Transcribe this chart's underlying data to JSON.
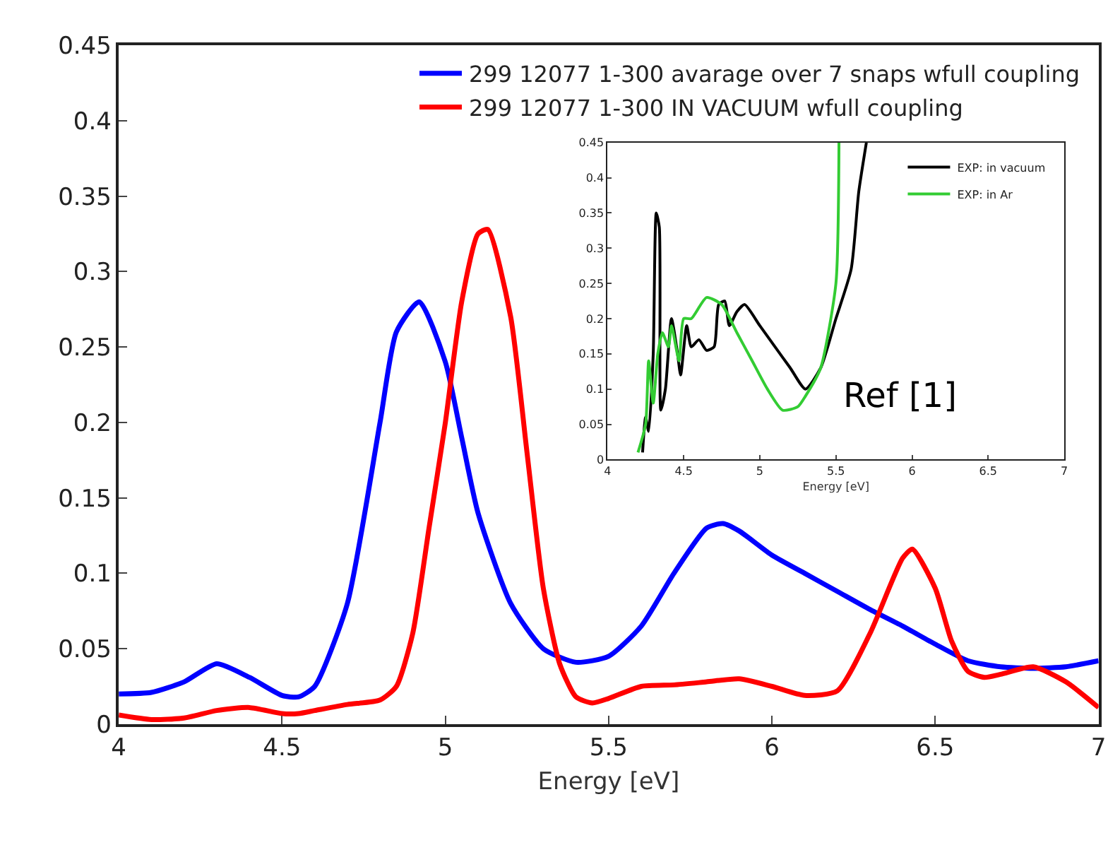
{
  "chart_data": [
    {
      "type": "line",
      "xlabel": "Energy [eV]",
      "xlim": [
        4,
        7
      ],
      "xticks": [
        4,
        4.5,
        5,
        5.5,
        6,
        6.5,
        7
      ],
      "ylim": [
        0,
        0.45
      ],
      "yticks": [
        0,
        0.05,
        0.1,
        0.15,
        0.2,
        0.25,
        0.3,
        0.35,
        0.4,
        0.45
      ],
      "legend": "top right",
      "marker": "none",
      "line_style": "solid",
      "series": [
        {
          "name": "299 12077 1-300 avarage over 7 snaps wfull coupling",
          "color": "#0000ff",
          "x": [
            4.0,
            4.1,
            4.2,
            4.3,
            4.4,
            4.5,
            4.55,
            4.6,
            4.7,
            4.8,
            4.85,
            4.92,
            5.0,
            5.05,
            5.1,
            5.2,
            5.3,
            5.4,
            5.5,
            5.6,
            5.7,
            5.8,
            5.85,
            5.9,
            6.0,
            6.1,
            6.2,
            6.3,
            6.4,
            6.5,
            6.6,
            6.7,
            6.8,
            6.9,
            7.0
          ],
          "values": [
            0.02,
            0.021,
            0.028,
            0.04,
            0.031,
            0.019,
            0.018,
            0.025,
            0.08,
            0.2,
            0.26,
            0.28,
            0.24,
            0.19,
            0.14,
            0.08,
            0.05,
            0.041,
            0.045,
            0.065,
            0.1,
            0.13,
            0.133,
            0.128,
            0.112,
            0.1,
            0.088,
            0.076,
            0.065,
            0.053,
            0.042,
            0.038,
            0.037,
            0.038,
            0.042
          ]
        },
        {
          "name": "299 12077 1-300 IN VACUUM wfull coupling",
          "color": "#ff0000",
          "x": [
            4.0,
            4.1,
            4.2,
            4.3,
            4.4,
            4.5,
            4.55,
            4.6,
            4.7,
            4.8,
            4.85,
            4.9,
            4.95,
            5.0,
            5.05,
            5.1,
            5.13,
            5.2,
            5.25,
            5.3,
            5.35,
            5.4,
            5.45,
            5.5,
            5.6,
            5.7,
            5.8,
            5.9,
            6.0,
            6.1,
            6.2,
            6.3,
            6.4,
            6.43,
            6.5,
            6.55,
            6.6,
            6.65,
            6.7,
            6.8,
            6.9,
            7.0
          ],
          "values": [
            0.006,
            0.003,
            0.004,
            0.009,
            0.011,
            0.007,
            0.007,
            0.009,
            0.013,
            0.016,
            0.025,
            0.06,
            0.13,
            0.2,
            0.28,
            0.325,
            0.328,
            0.27,
            0.18,
            0.09,
            0.04,
            0.018,
            0.014,
            0.017,
            0.025,
            0.026,
            0.028,
            0.03,
            0.025,
            0.019,
            0.022,
            0.06,
            0.11,
            0.116,
            0.09,
            0.055,
            0.035,
            0.031,
            0.033,
            0.038,
            0.028,
            0.011
          ]
        }
      ]
    },
    {
      "type": "line",
      "xlabel": "Energy [eV]",
      "xlim": [
        4,
        7
      ],
      "xticks": [
        4,
        4.5,
        5,
        5.5,
        6,
        6.5,
        7
      ],
      "ylim": [
        0,
        0.45
      ],
      "yticks": [
        0,
        0.05,
        0.1,
        0.15,
        0.2,
        0.25,
        0.3,
        0.35,
        0.4,
        0.45
      ],
      "legend": "top right",
      "marker": "none",
      "line_style": "solid",
      "annotations": [
        "Ref [1]"
      ],
      "series": [
        {
          "name": "EXP: in vacuum",
          "color": "#000000",
          "x": [
            4.23,
            4.25,
            4.27,
            4.3,
            4.32,
            4.34,
            4.35,
            4.38,
            4.42,
            4.46,
            4.48,
            4.52,
            4.55,
            4.6,
            4.65,
            4.7,
            4.73,
            4.77,
            4.8,
            4.85,
            4.9,
            5.0,
            5.1,
            5.2,
            5.3,
            5.4,
            5.5,
            5.6,
            5.65,
            5.7
          ],
          "values": [
            0.01,
            0.06,
            0.04,
            0.15,
            0.35,
            0.33,
            0.07,
            0.1,
            0.2,
            0.15,
            0.12,
            0.19,
            0.16,
            0.17,
            0.155,
            0.16,
            0.22,
            0.225,
            0.19,
            0.21,
            0.22,
            0.19,
            0.16,
            0.13,
            0.1,
            0.13,
            0.2,
            0.27,
            0.38,
            0.45
          ]
        },
        {
          "name": "EXP: in Ar",
          "color": "#33cc33",
          "x": [
            4.2,
            4.25,
            4.27,
            4.3,
            4.33,
            4.36,
            4.4,
            4.42,
            4.47,
            4.5,
            4.55,
            4.65,
            4.75,
            4.85,
            4.95,
            5.05,
            5.15,
            5.25,
            5.3,
            5.4,
            5.5,
            5.52
          ],
          "values": [
            0.01,
            0.05,
            0.14,
            0.08,
            0.15,
            0.18,
            0.16,
            0.19,
            0.14,
            0.2,
            0.2,
            0.23,
            0.22,
            0.18,
            0.14,
            0.1,
            0.07,
            0.075,
            0.09,
            0.13,
            0.25,
            0.45
          ]
        }
      ]
    }
  ]
}
